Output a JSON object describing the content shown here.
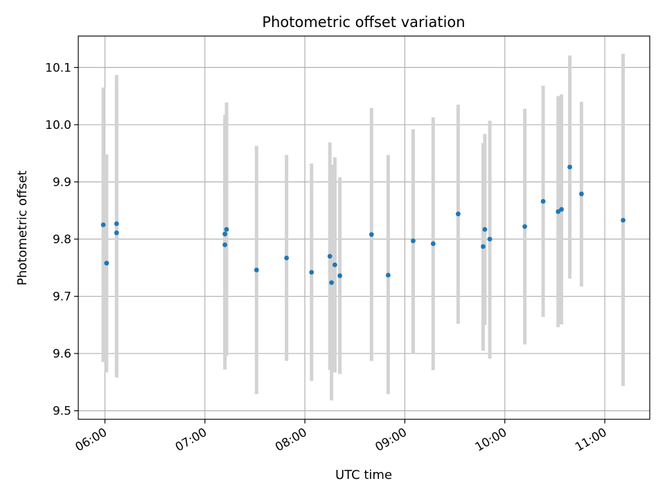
{
  "chart_data": {
    "type": "scatter",
    "title": "Photometric offset variation",
    "xlabel": "UTC time",
    "ylabel": "Photometric offset",
    "ylim": [
      9.485,
      10.155
    ],
    "xlim": [
      "05:44",
      "11:27"
    ],
    "x_ticks": [
      "06:00",
      "07:00",
      "08:00",
      "09:00",
      "10:00",
      "11:00"
    ],
    "y_ticks": [
      9.5,
      9.6,
      9.7,
      9.8,
      9.9,
      10.0,
      10.1
    ],
    "grid": true,
    "point_color": "#1f77b4",
    "errorbar_color": "#d3d3d3",
    "points": [
      {
        "x": "05:59",
        "y": 9.825,
        "ylo": 9.585,
        "yhi": 10.065
      },
      {
        "x": "06:01",
        "y": 9.758,
        "ylo": 9.567,
        "yhi": 9.948
      },
      {
        "x": "06:07",
        "y": 9.827,
        "ylo": 9.565,
        "yhi": 10.087
      },
      {
        "x": "06:07",
        "y": 9.811,
        "ylo": 9.558,
        "yhi": 10.066
      },
      {
        "x": "07:12",
        "y": 9.79,
        "ylo": 9.572,
        "yhi": 10.008
      },
      {
        "x": "07:12",
        "y": 9.809,
        "ylo": 9.6,
        "yhi": 10.017
      },
      {
        "x": "07:13",
        "y": 9.817,
        "ylo": 9.596,
        "yhi": 10.039
      },
      {
        "x": "07:31",
        "y": 9.746,
        "ylo": 9.529,
        "yhi": 9.963
      },
      {
        "x": "07:49",
        "y": 9.767,
        "ylo": 9.587,
        "yhi": 9.947
      },
      {
        "x": "08:04",
        "y": 9.742,
        "ylo": 9.552,
        "yhi": 9.932
      },
      {
        "x": "08:15",
        "y": 9.77,
        "ylo": 9.571,
        "yhi": 9.969
      },
      {
        "x": "08:16",
        "y": 9.724,
        "ylo": 9.518,
        "yhi": 9.93
      },
      {
        "x": "08:18",
        "y": 9.755,
        "ylo": 9.567,
        "yhi": 9.943
      },
      {
        "x": "08:21",
        "y": 9.736,
        "ylo": 9.564,
        "yhi": 9.908
      },
      {
        "x": "08:40",
        "y": 9.808,
        "ylo": 9.587,
        "yhi": 10.029
      },
      {
        "x": "08:50",
        "y": 9.737,
        "ylo": 9.529,
        "yhi": 9.947
      },
      {
        "x": "09:05",
        "y": 9.797,
        "ylo": 9.6,
        "yhi": 9.992
      },
      {
        "x": "09:17",
        "y": 9.792,
        "ylo": 9.571,
        "yhi": 10.013
      },
      {
        "x": "09:32",
        "y": 9.844,
        "ylo": 9.652,
        "yhi": 10.035
      },
      {
        "x": "09:47",
        "y": 9.787,
        "ylo": 9.605,
        "yhi": 9.968
      },
      {
        "x": "09:48",
        "y": 9.817,
        "ylo": 9.65,
        "yhi": 9.984
      },
      {
        "x": "09:51",
        "y": 9.8,
        "ylo": 9.591,
        "yhi": 10.007
      },
      {
        "x": "10:12",
        "y": 9.822,
        "ylo": 9.616,
        "yhi": 10.028
      },
      {
        "x": "10:23",
        "y": 9.866,
        "ylo": 9.664,
        "yhi": 10.068
      },
      {
        "x": "10:32",
        "y": 9.848,
        "ylo": 9.646,
        "yhi": 10.05
      },
      {
        "x": "10:34",
        "y": 9.852,
        "ylo": 9.651,
        "yhi": 10.053
      },
      {
        "x": "10:39",
        "y": 9.926,
        "ylo": 9.731,
        "yhi": 10.121
      },
      {
        "x": "10:46",
        "y": 9.879,
        "ylo": 9.717,
        "yhi": 10.04
      },
      {
        "x": "11:11",
        "y": 9.833,
        "ylo": 9.543,
        "yhi": 10.124
      }
    ]
  }
}
